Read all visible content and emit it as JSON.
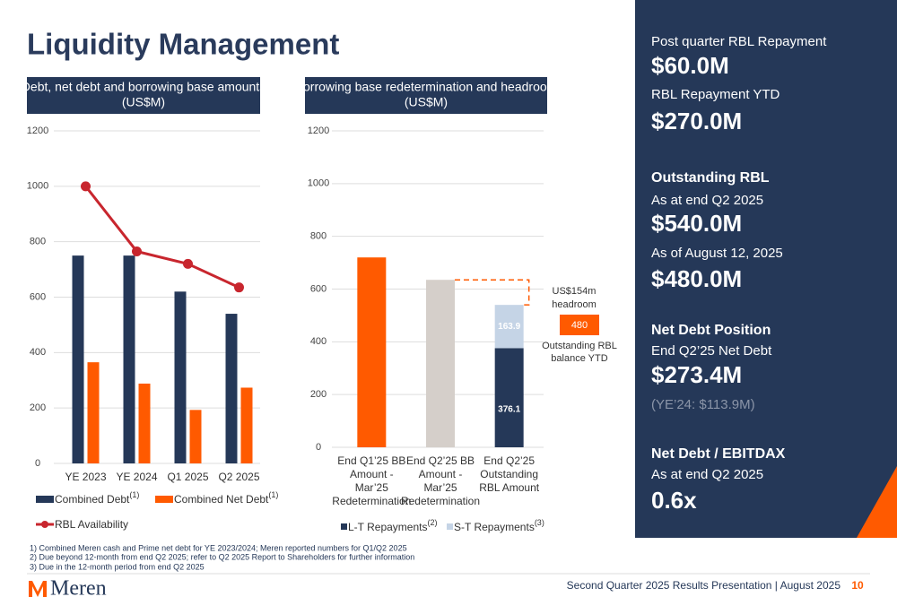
{
  "title": "Liquidity Management",
  "sidebar": {
    "post_label": "Post quarter RBL Repayment",
    "post_value": "$60.0M",
    "ytd_label": "RBL Repayment YTD",
    "ytd_value": "$270.0M",
    "rbl_head": "Outstanding RBL",
    "rbl_date1": "As at end Q2 2025",
    "rbl_value1": "$540.0M",
    "rbl_date2": "As of August 12, 2025",
    "rbl_value2": "$480.0M",
    "nd_head": "Net Debt Position",
    "nd_label": "End Q2’25 Net Debt",
    "nd_value": "$273.4M",
    "nd_prior": "(YE’24: $113.9M)",
    "ratio_head": "Net Debt / EBITDAX",
    "ratio_label": "As at end Q2 2025",
    "ratio_value": "0.6x"
  },
  "footnotes": [
    "1)  Combined Meren cash and Prime net debt for YE 2023/2024; Meren reported numbers for Q1/Q2 2025",
    "2)  Due beyond 12-month from end Q2 2025; refer to Q2 2025 Report to Shareholders for further information",
    "3)  Due in the 12-month period from end Q2 2025"
  ],
  "footer": {
    "logo": "Meren",
    "text": "Second Quarter 2025 Results Presentation | August 2025",
    "page": "10"
  },
  "chart_data": [
    {
      "type": "bar-line",
      "title": [
        "Debt, net debt and borrowing base amounts",
        "(US$M)"
      ],
      "categories": [
        "YE 2023",
        "YE 2024",
        "Q1 2025",
        "Q2 2025"
      ],
      "series": [
        {
          "name": "Combined Debt",
          "note": "(1)",
          "color": "#253858",
          "kind": "bar",
          "values": [
            750,
            750,
            620,
            540
          ]
        },
        {
          "name": "Combined Net Debt",
          "note": "(1)",
          "color": "#ff5a00",
          "kind": "bar",
          "values": [
            365,
            288,
            193,
            273.4
          ]
        },
        {
          "name": "RBL Availability",
          "color": "#c8262e",
          "kind": "line",
          "values": [
            1000,
            765,
            720,
            635
          ]
        }
      ],
      "ylim": [
        0,
        1200
      ],
      "yticks": [
        0,
        200,
        400,
        600,
        800,
        1000,
        1200
      ],
      "grid": true
    },
    {
      "type": "stacked-bar",
      "title": [
        "Borrowing base redetermination and headroom",
        "(US$M)"
      ],
      "categories": [
        [
          "End Q1’25 BB",
          "Amount -",
          "Mar’25",
          "Redetermination"
        ],
        [
          "End Q2’25 BB",
          "Amount -",
          "Mar’25",
          "Redetermination"
        ],
        [
          "End Q2’25",
          "Outstanding",
          "RBL Amount"
        ]
      ],
      "values": [
        720,
        635,
        null
      ],
      "colors": [
        "#ff5a00",
        "#d5cfca",
        null
      ],
      "series": [
        {
          "name": "L-T Repayments",
          "note": "(2)",
          "color": "#253858",
          "values": [
            null,
            null,
            376.1
          ]
        },
        {
          "name": "S-T Repayments",
          "note": "(3)",
          "color": "#c5d4e6",
          "values": [
            null,
            null,
            163.9
          ]
        }
      ],
      "headroom": [
        "US$154m",
        "headroom"
      ],
      "outstanding": {
        "value": 480,
        "label": [
          "Outstanding RBL",
          "balance YTD"
        ]
      },
      "ylim": [
        0,
        1200
      ],
      "yticks": [
        0,
        200,
        400,
        600,
        800,
        1000,
        1200
      ],
      "grid": true
    }
  ]
}
